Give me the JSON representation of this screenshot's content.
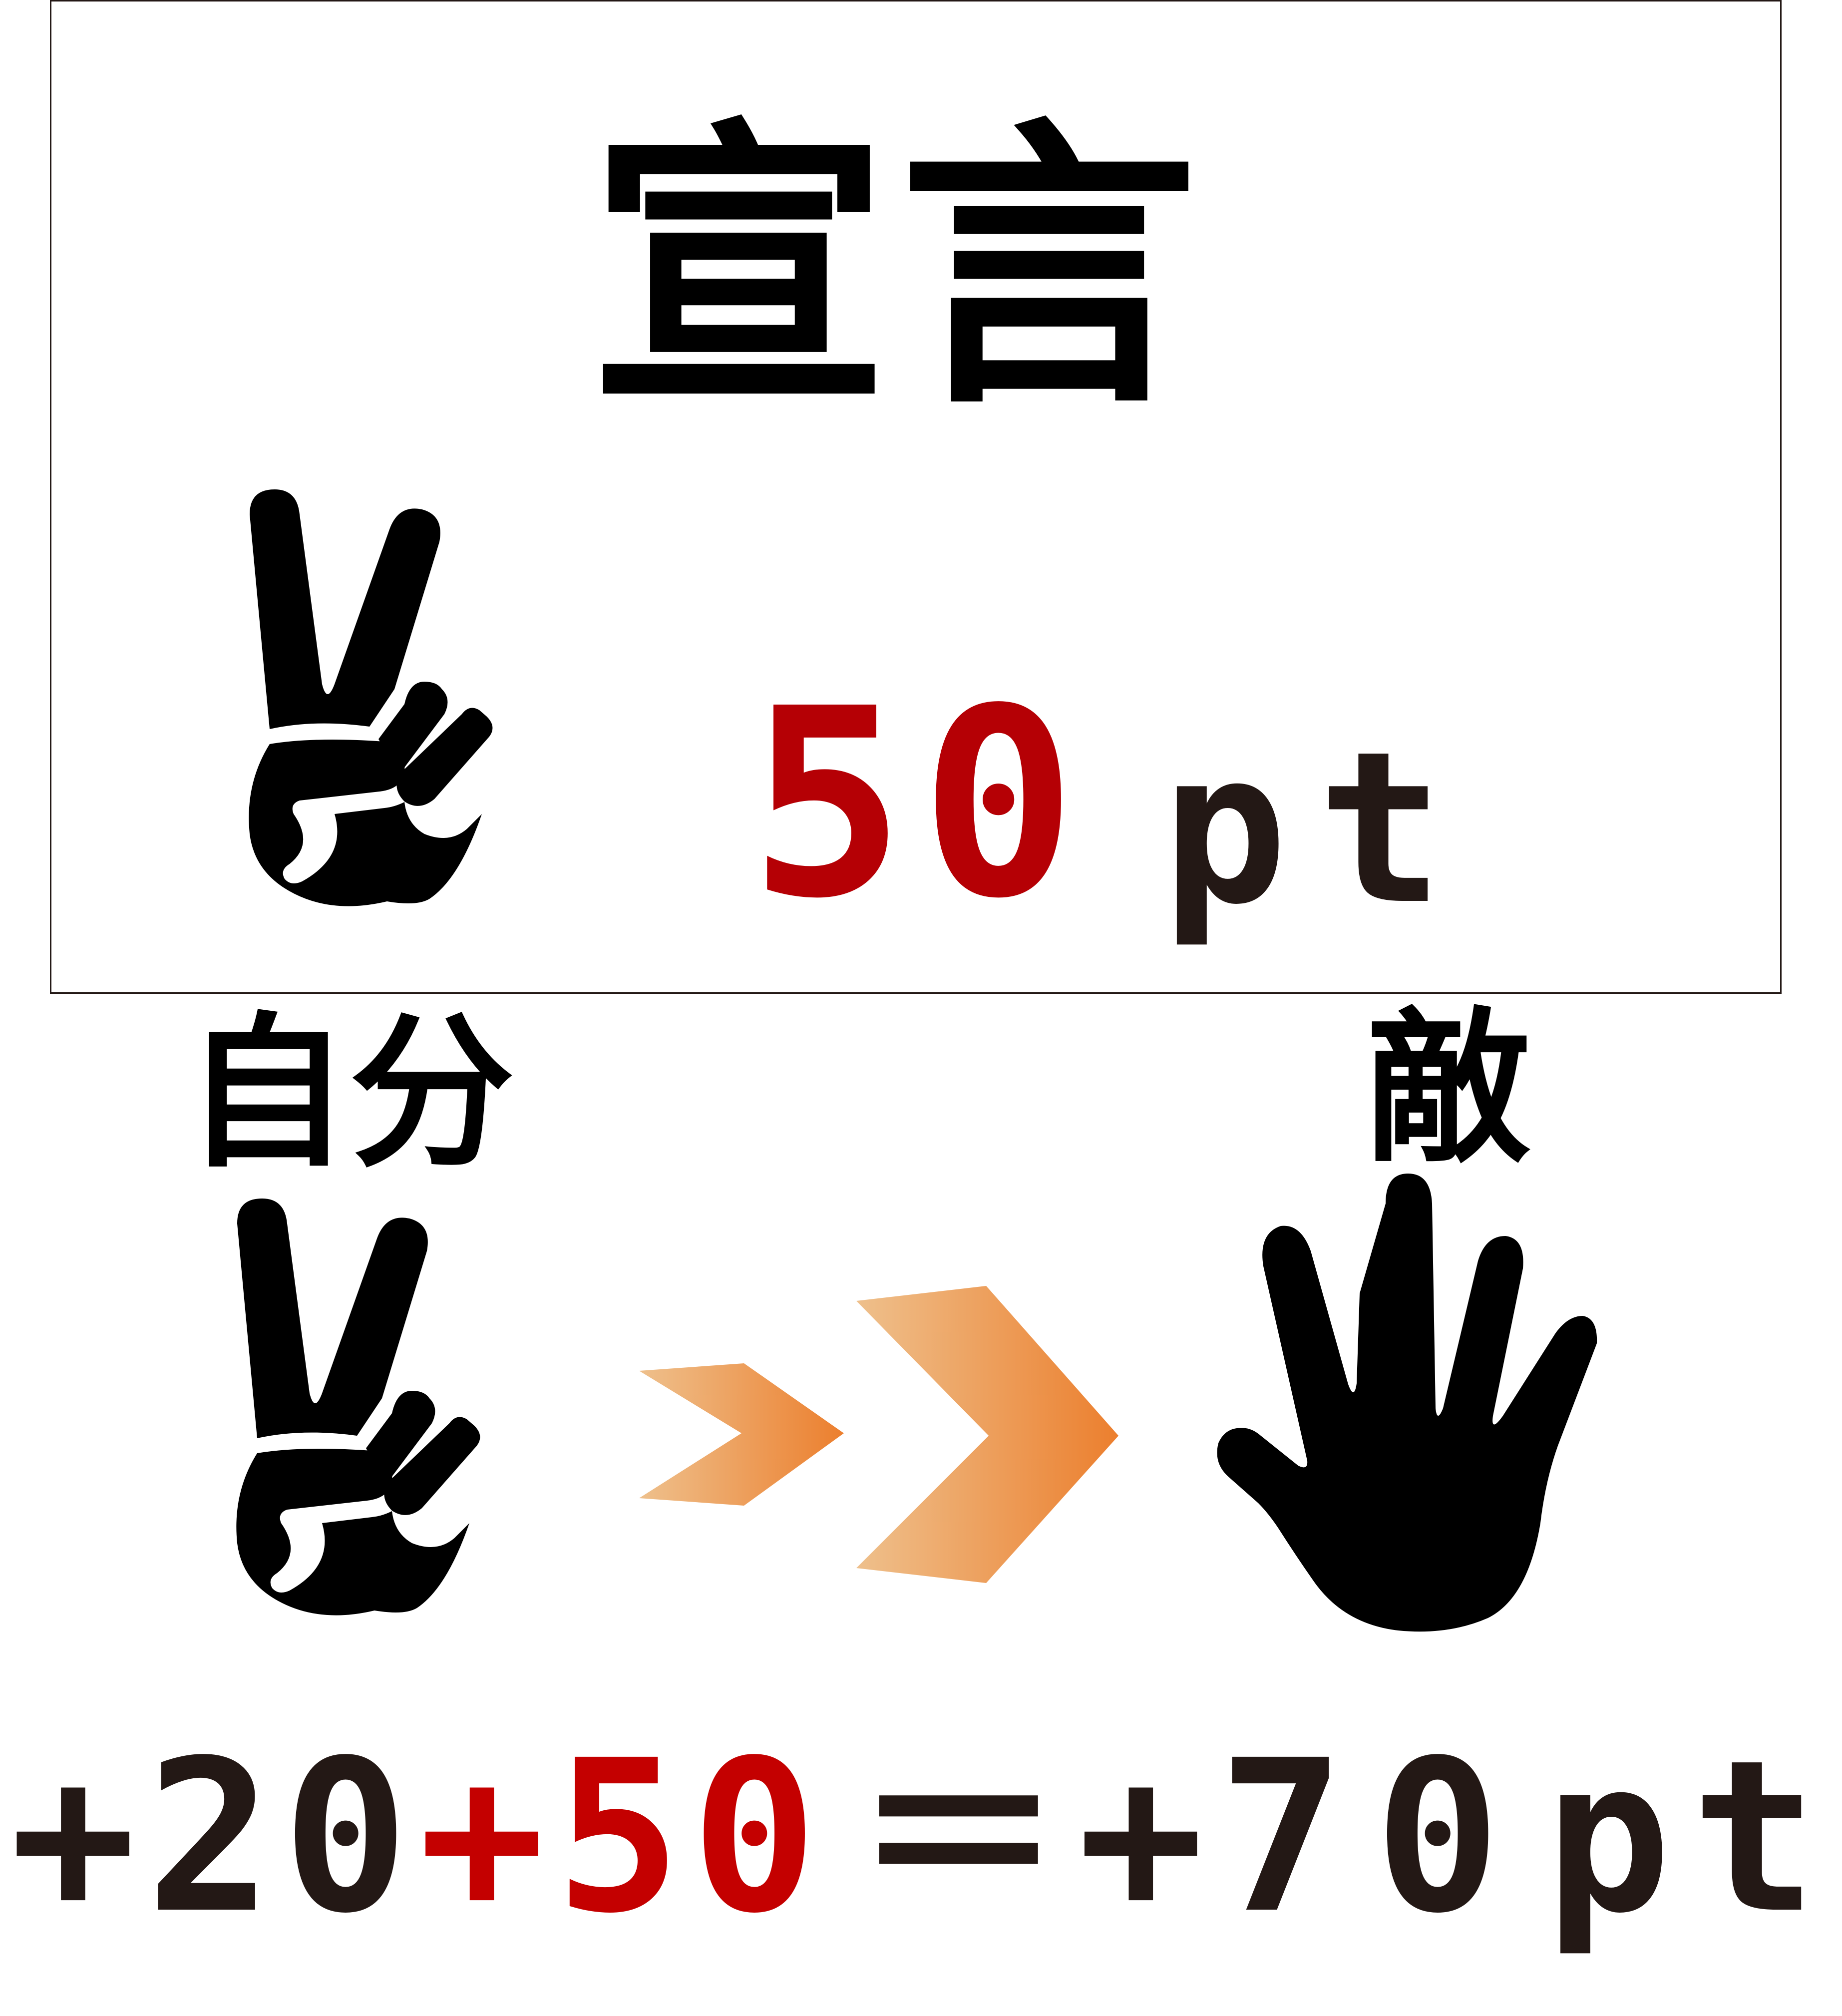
{
  "declaration": {
    "title": "宣言",
    "points_value": "50",
    "points_unit": "pt"
  },
  "players": {
    "self_label": "自分",
    "enemy_label": "敵",
    "self_hand_icon": "peace-sign-hand",
    "enemy_hand_icon": "open-palm-hand"
  },
  "equation": {
    "term1": "+20",
    "term2": "+50",
    "equals": "＝",
    "result_sign": "+",
    "result_value": "70",
    "result_unit": "pt"
  },
  "colors": {
    "text_dark": "#231815",
    "accent_red": "#c40000",
    "declared_red": "#b50005",
    "arrow_light": "#eec08c",
    "arrow_dark": "#ec7f2e"
  }
}
